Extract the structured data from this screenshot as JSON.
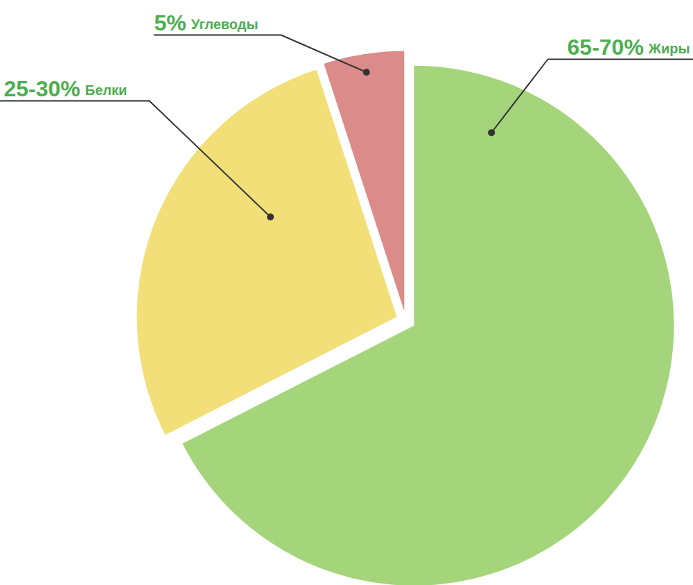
{
  "chart_data": {
    "type": "pie",
    "categories": [
      "Жиры",
      "Белки",
      "Углеводы"
    ],
    "values": [
      67.5,
      27.5,
      5
    ],
    "value_labels": [
      "65-70%",
      "25-30%",
      "5%"
    ],
    "colors": [
      "#a5d57b",
      "#f2df78",
      "#db8b89"
    ],
    "data_labels": true
  }
}
